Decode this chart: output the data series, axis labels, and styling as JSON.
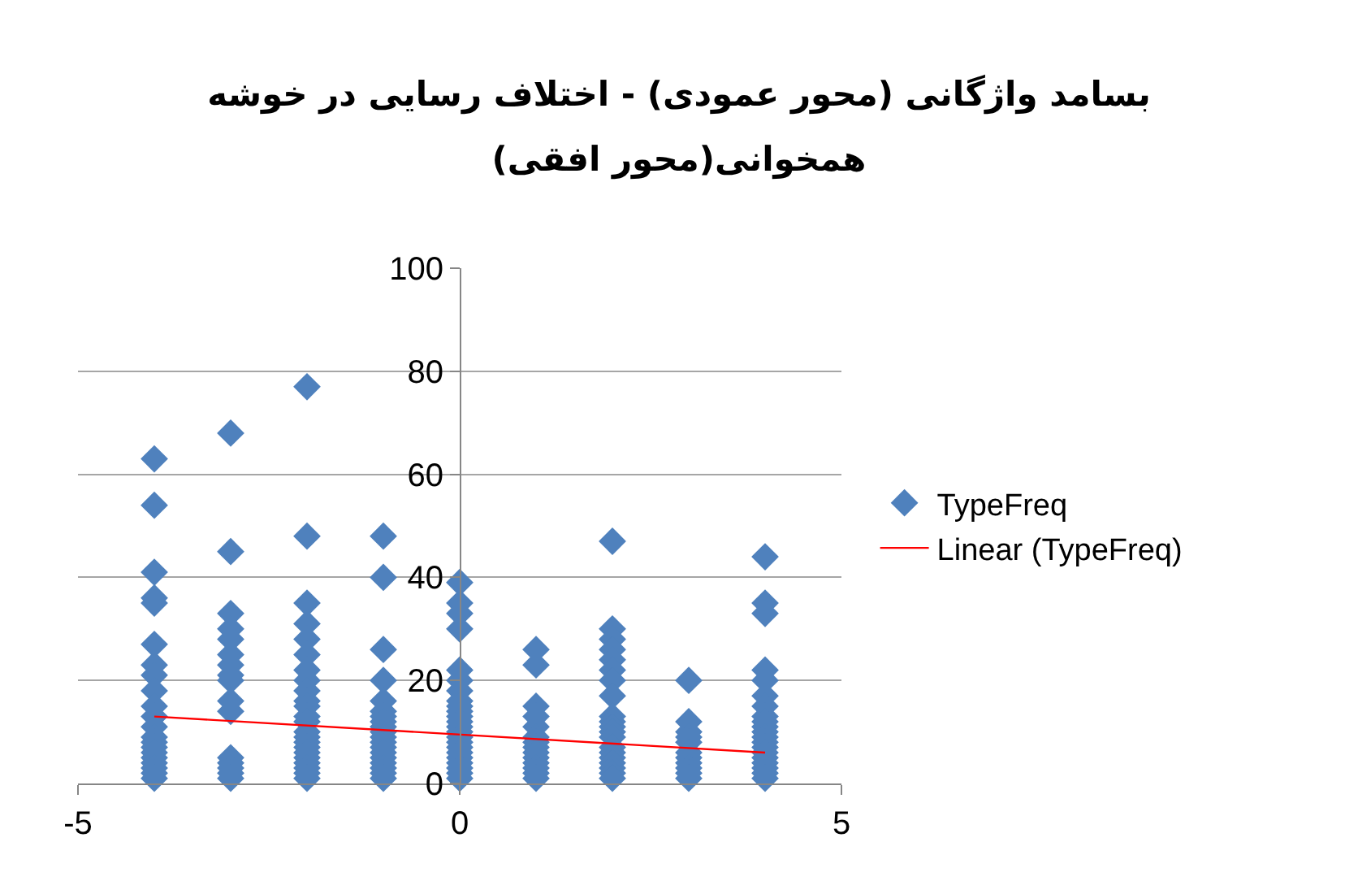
{
  "chart_data": {
    "type": "scatter",
    "title": "بسامد واژگانی (محور عمودی) - اختلاف رسایی در خوشه همخوانی(محور افقی)",
    "xlim": [
      -5,
      5
    ],
    "xticks": [
      -5,
      0,
      5
    ],
    "ylim": [
      0,
      100
    ],
    "yticks": [
      0,
      20,
      40,
      60,
      80,
      100
    ],
    "grid": "y",
    "legend": "right",
    "series": [
      {
        "name": "TypeFreq",
        "marker": "diamond",
        "color": "#4f81bd",
        "x": [
          -4,
          -4,
          -4,
          -4,
          -4,
          -4,
          -4,
          -4,
          -4,
          -4,
          -4,
          -4,
          -4,
          -4,
          -4,
          -4,
          -4,
          -4,
          -4,
          -4,
          -4,
          -3,
          -3,
          -3,
          -3,
          -3,
          -3,
          -3,
          -3,
          -3,
          -3,
          -3,
          -3,
          -3,
          -3,
          -3,
          -3,
          -2,
          -2,
          -2,
          -2,
          -2,
          -2,
          -2,
          -2,
          -2,
          -2,
          -2,
          -2,
          -2,
          -2,
          -2,
          -2,
          -2,
          -2,
          -2,
          -2,
          -2,
          -2,
          -2,
          -1,
          -1,
          -1,
          -1,
          -1,
          -1,
          -1,
          -1,
          -1,
          -1,
          -1,
          -1,
          -1,
          -1,
          -1,
          -1,
          -1,
          -1,
          -1,
          0,
          0,
          0,
          0,
          0,
          0,
          0,
          0,
          0,
          0,
          0,
          0,
          0,
          0,
          0,
          0,
          0,
          0,
          0,
          0,
          0,
          0,
          0,
          1,
          1,
          1,
          1,
          1,
          1,
          1,
          1,
          1,
          1,
          1,
          1,
          1,
          1,
          2,
          2,
          2,
          2,
          2,
          2,
          2,
          2,
          2,
          2,
          2,
          2,
          2,
          2,
          2,
          2,
          2,
          2,
          2,
          2,
          3,
          3,
          3,
          3,
          3,
          3,
          3,
          3,
          3,
          3,
          3,
          4,
          4,
          4,
          4,
          4,
          4,
          4,
          4,
          4,
          4,
          4,
          4,
          4,
          4,
          4,
          4,
          4,
          4,
          4,
          4
        ],
        "values": [
          63,
          54,
          41,
          36,
          35,
          27,
          23,
          21,
          18,
          15,
          13,
          11,
          9,
          8,
          7,
          6,
          5,
          4,
          3,
          2,
          1,
          68,
          45,
          33,
          30,
          28,
          25,
          23,
          21,
          20,
          16,
          14,
          5,
          4,
          3,
          2,
          1,
          77,
          48,
          35,
          31,
          28,
          25,
          22,
          20,
          18,
          16,
          15,
          13,
          12,
          10,
          9,
          8,
          7,
          6,
          5,
          4,
          3,
          2,
          1,
          48,
          40,
          26,
          20,
          16,
          14,
          13,
          12,
          11,
          10,
          9,
          8,
          7,
          6,
          5,
          4,
          3,
          2,
          1,
          39,
          35,
          33,
          30,
          22,
          20,
          18,
          16,
          15,
          14,
          13,
          12,
          11,
          10,
          9,
          8,
          7,
          6,
          5,
          4,
          3,
          2,
          1,
          26,
          23,
          15,
          13,
          11,
          9,
          8,
          7,
          6,
          5,
          4,
          3,
          2,
          1,
          47,
          30,
          28,
          26,
          24,
          22,
          20,
          17,
          13,
          12,
          11,
          10,
          9,
          7,
          6,
          5,
          4,
          3,
          2,
          1,
          20,
          12,
          10,
          9,
          8,
          6,
          5,
          4,
          3,
          2,
          1,
          44,
          35,
          33,
          22,
          20,
          17,
          15,
          13,
          12,
          11,
          10,
          9,
          8,
          7,
          6,
          5,
          4,
          3,
          2,
          1
        ]
      },
      {
        "name": "Linear (TypeFreq)",
        "type": "line",
        "color": "#ff0000",
        "x": [
          -4,
          4
        ],
        "values": [
          13,
          6
        ]
      }
    ]
  }
}
